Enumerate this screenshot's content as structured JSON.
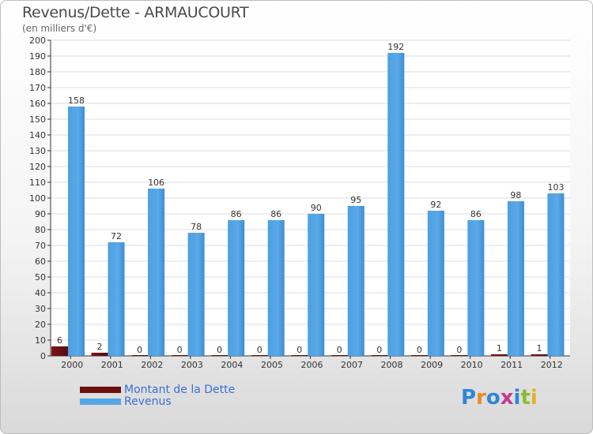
{
  "title": "Revenus/Dette - ARMAUCOURT",
  "subtitle": "(en milliers d'€)",
  "brand": {
    "text": "Proxiti",
    "letters": [
      "P",
      "r",
      "o",
      "x",
      "i",
      "t",
      "i"
    ],
    "colors": [
      "#2e86d6",
      "#e98a1e",
      "#2e86d6",
      "#c43a8e",
      "#2e86d6",
      "#8cbb2a",
      "#e2b320"
    ]
  },
  "colors": {
    "dette": "#6b0f0f",
    "revenus": "#55a6e6"
  },
  "chart_data": {
    "type": "bar",
    "title": "Revenus/Dette - ARMAUCOURT",
    "ylabel": "(en milliers d'€)",
    "ylim": [
      0,
      200
    ],
    "yticks": [
      0,
      10,
      20,
      30,
      40,
      50,
      60,
      70,
      80,
      90,
      100,
      110,
      120,
      130,
      140,
      150,
      160,
      170,
      180,
      190,
      200
    ],
    "categories": [
      "2000",
      "2001",
      "2002",
      "2003",
      "2004",
      "2005",
      "2006",
      "2007",
      "2008",
      "2009",
      "2010",
      "2011",
      "2012"
    ],
    "series": [
      {
        "name": "Montant de la Dette",
        "values": [
          6,
          2,
          0,
          0,
          0,
          0,
          0,
          0,
          0,
          0,
          0,
          1,
          1
        ]
      },
      {
        "name": "Revenus",
        "values": [
          158,
          72,
          106,
          78,
          86,
          86,
          90,
          95,
          192,
          92,
          86,
          98,
          103
        ]
      }
    ],
    "legend_position": "bottom-left"
  }
}
